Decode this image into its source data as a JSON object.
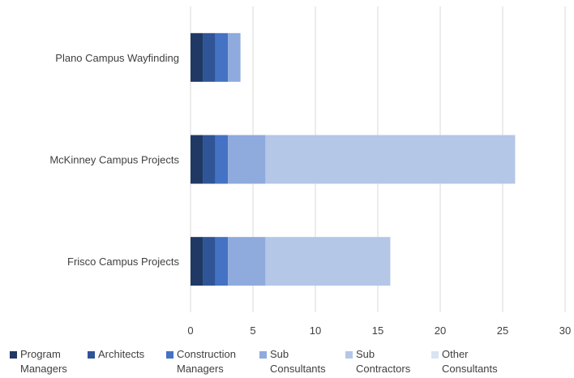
{
  "chart_data": {
    "type": "bar",
    "orientation": "horizontal",
    "stacked": true,
    "categories": [
      "Plano Campus Wayfinding",
      "McKinney Campus Projects",
      "Frisco Campus Projects"
    ],
    "series": [
      {
        "name": "Program Managers",
        "name_lines": [
          "Program",
          "Managers"
        ],
        "color": "#203864",
        "values": [
          1,
          1,
          1
        ]
      },
      {
        "name": "Architects",
        "name_lines": [
          "Architects",
          ""
        ],
        "color": "#2f5597",
        "values": [
          1,
          1,
          1
        ]
      },
      {
        "name": "Construction Managers",
        "name_lines": [
          "Construction",
          "Managers"
        ],
        "color": "#4472c4",
        "values": [
          1,
          1,
          1
        ]
      },
      {
        "name": "Sub Consultants",
        "name_lines": [
          "Sub",
          "Consultants"
        ],
        "color": "#8faadc",
        "values": [
          1,
          3,
          3
        ]
      },
      {
        "name": "Sub Contractors",
        "name_lines": [
          "Sub",
          "Contractors"
        ],
        "color": "#b4c7e7",
        "values": [
          0,
          20,
          10
        ]
      },
      {
        "name": "Other Consultants",
        "name_lines": [
          "Other",
          "Consultants"
        ],
        "color": "#dae3f3",
        "values": [
          0,
          0,
          0
        ]
      }
    ],
    "x_ticks": [
      "0",
      "5",
      "10",
      "15",
      "20",
      "25",
      "30"
    ],
    "xlim": [
      0,
      30
    ],
    "grid": true,
    "legend_position": "bottom",
    "title": "",
    "xlabel": "",
    "ylabel": ""
  }
}
